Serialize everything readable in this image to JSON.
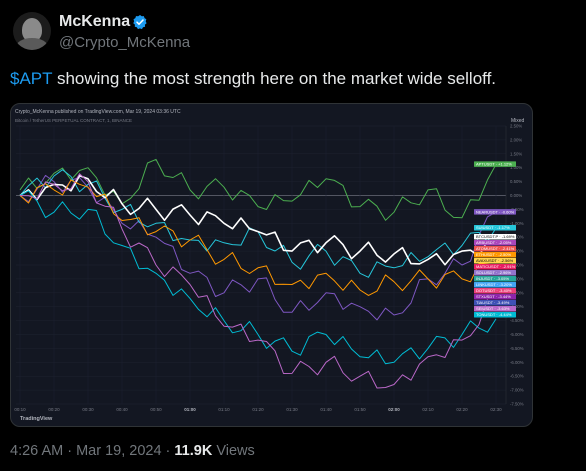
{
  "author": {
    "name": "McKenna",
    "handle": "@Crypto_McKenna",
    "verified_color": "#1d9bf0"
  },
  "tweet": {
    "cashtag": "$APT",
    "text": " showing the most strength here on the market wide selloff."
  },
  "chart_image": {
    "header": "Crypto_McKenna published on TradingView.com, Mar 19, 2024 03:36 UTC",
    "subheader": "Bitcoin / TetherUS PERPETUAL CONTRACT, 1, BINANCE",
    "scale_mode": "Mixed",
    "watermark": "TradingView",
    "right_axis": [
      "2.50%",
      "2.00%",
      "1.50%",
      "1.00%",
      "0.50%",
      "0.00%",
      "-0.50%",
      "-1.00%",
      "-1.50%",
      "-2.00%",
      "-2.50%",
      "-3.00%",
      "-3.50%",
      "-4.00%",
      "-4.50%",
      "-5.00%",
      "-5.50%",
      "-6.00%",
      "-6.50%",
      "-7.00%",
      "-7.50%"
    ],
    "time_axis": [
      "00:10",
      "00:20",
      "00:30",
      "00:40",
      "00:50",
      "01:00",
      "01:10",
      "01:20",
      "01:30",
      "01:40",
      "01:50",
      "02:00",
      "02:10",
      "02:20",
      "02:30"
    ],
    "time_axis_bold": "01:00",
    "time_axis_bold2": "02:00",
    "labels": [
      {
        "text": "APTUSDT · +1.12%",
        "color": "#4caf50"
      },
      {
        "text": "NEARUSDT · -0.60%",
        "color": "#7e57c2"
      },
      {
        "text": "SUIUSDT · -1.17%",
        "color": "#26c6da"
      },
      {
        "text": "BTCUSDT.P · -1.69%",
        "color": "#ffffff"
      },
      {
        "text": "ARBUSDT · -2.05%",
        "color": "#ab47bc"
      },
      {
        "text": "ATOMUSDT · -2.41%",
        "color": "#ef5350"
      },
      {
        "text": "ETHUSDT · -2.50%",
        "color": "#ff9800"
      },
      {
        "text": "AVAXUSDT · -2.56%",
        "color": "#ffd54f"
      },
      {
        "text": "MATICUSDT · -2.91%",
        "color": "#e91e63"
      },
      {
        "text": "SOLUSDT · -2.96%",
        "color": "#9575cd"
      },
      {
        "text": "INJUSDT · -3.05%",
        "color": "#26a69a"
      },
      {
        "text": "LINKUSDT · -3.20%",
        "color": "#42a5f5"
      },
      {
        "text": "DOTUSDT · -3.40%",
        "color": "#ec407a"
      },
      {
        "text": "STXUSDT · -3.44%",
        "color": "#8e24aa"
      },
      {
        "text": "TIAUSDT · -3.49%",
        "color": "#3f51b5"
      },
      {
        "text": "SEIUSDT · -3.63%",
        "color": "#ba68c8"
      },
      {
        "text": "TONUSDT · -4.44%",
        "color": "#00bcd4"
      }
    ]
  },
  "chart_data": {
    "type": "line",
    "x": [
      "00:10",
      "00:20",
      "00:30",
      "00:40",
      "00:50",
      "01:00",
      "01:10",
      "01:20",
      "01:30",
      "01:40",
      "01:50",
      "02:00",
      "02:10",
      "02:20",
      "02:30"
    ],
    "ylabel": "",
    "ylim": [
      -7.5,
      2.5
    ],
    "series": [
      {
        "name": "APTUSDT",
        "color": "#4caf50",
        "values": [
          0.2,
          0.8,
          1.0,
          -0.3,
          1.3,
          0.2,
          0.3,
          -0.4,
          -0.2,
          0.6,
          -0.4,
          -0.6,
          0.2,
          -0.8,
          1.12
        ]
      },
      {
        "name": "NEARUSDT",
        "color": "#7e57c2",
        "values": [
          0.0,
          0.5,
          0.3,
          -1.0,
          -1.5,
          -2.8,
          -3.5,
          -3.0,
          -4.2,
          -3.5,
          -4.0,
          -4.3,
          -3.0,
          -2.5,
          -0.6
        ]
      },
      {
        "name": "SUIUSDT",
        "color": "#26c6da",
        "values": [
          0.0,
          0.7,
          0.4,
          -0.5,
          -1.0,
          -1.6,
          -1.7,
          -1.3,
          -2.4,
          -2.0,
          -2.8,
          -2.6,
          -2.2,
          -1.8,
          -1.17
        ]
      },
      {
        "name": "BTCUSDT.P",
        "color": "#ffffff",
        "values": [
          0.0,
          0.4,
          0.6,
          -0.3,
          -0.5,
          -0.7,
          -1.0,
          -1.3,
          -2.0,
          -1.7,
          -2.0,
          -2.1,
          -2.3,
          -2.0,
          -1.69
        ]
      },
      {
        "name": "ETHUSDT",
        "color": "#ff9800",
        "values": [
          0.0,
          0.2,
          0.3,
          -0.9,
          -1.3,
          -1.6,
          -2.3,
          -2.6,
          -3.2,
          -2.8,
          -3.4,
          -3.1,
          -3.0,
          -3.0,
          -2.5
        ]
      },
      {
        "name": "TONUSDT",
        "color": "#00bcd4",
        "values": [
          0.0,
          -0.6,
          -0.5,
          -1.8,
          -2.8,
          -3.7,
          -4.5,
          -5.0,
          -5.6,
          -5.0,
          -5.8,
          -6.0,
          -5.5,
          -5.0,
          -4.44
        ]
      },
      {
        "name": "SEIUSDT",
        "color": "#ba68c8",
        "values": [
          0.0,
          0.4,
          0.5,
          -1.2,
          -2.5,
          -3.2,
          -4.7,
          -5.2,
          -6.4,
          -6.0,
          -6.5,
          -6.8,
          -5.8,
          -5.2,
          -3.63
        ]
      }
    ]
  }
}
